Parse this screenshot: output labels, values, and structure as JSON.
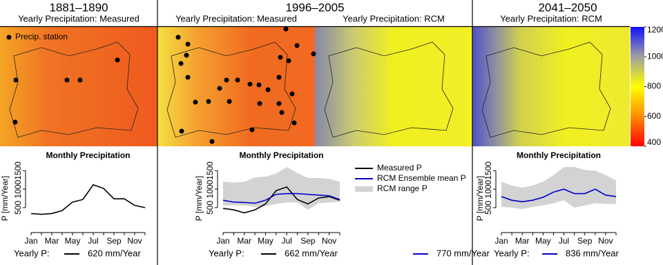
{
  "panels": [
    {
      "period": "1881–1890",
      "maps": [
        {
          "subtitle": "Yearly Precipitation: Measured"
        }
      ]
    },
    {
      "period": "1996–2005",
      "maps": [
        {
          "subtitle": "Yearly Precipitation: Measured"
        },
        {
          "subtitle": "Yearly Precipitation: RCM"
        }
      ]
    },
    {
      "period": "2041–2050",
      "maps": [
        {
          "subtitle": "Yearly Precipitation: RCM"
        }
      ]
    }
  ],
  "map_legend": "Precip. station",
  "colorbar": {
    "lim": [
      400,
      1200
    ],
    "ticks": [
      400,
      600,
      800,
      1000,
      1200
    ],
    "colors": [
      "#ff0000",
      "#ff8c00",
      "#ffff00",
      "#a0a0a0",
      "#1010ff"
    ]
  },
  "chart_data": [
    {
      "type": "line",
      "title": "Monthly Precipitation",
      "ylabel": "P [mm/Year]",
      "footer_label": "Yearly P:",
      "categories": [
        "Jan",
        null,
        "Mar",
        null,
        "May",
        null,
        "Jul",
        null,
        "Sep",
        null,
        "Nov",
        null
      ],
      "ylim": [
        -100,
        1600
      ],
      "yticks": [
        500,
        1000,
        1500
      ],
      "series": [
        {
          "color": "#000000",
          "yearly_label": "620 mm/Year",
          "values": [
            340,
            320,
            340,
            420,
            650,
            720,
            1120,
            1020,
            740,
            740,
            560,
            500
          ]
        }
      ]
    },
    {
      "type": "line",
      "title": "Monthly Precipitation",
      "ylabel": "P [mm/Year]",
      "footer_label": "Yearly P:",
      "categories": [
        "Jan",
        null,
        "Mar",
        null,
        "May",
        null,
        "Jul",
        null,
        "Sep",
        null,
        "Nov",
        null
      ],
      "ylim": [
        -100,
        1600
      ],
      "yticks": [
        500,
        1000,
        1500
      ],
      "range": {
        "name": "RCM range P",
        "color": "#d3d3d3",
        "lower": [
          560,
          560,
          560,
          520,
          540,
          600,
          640,
          640,
          440,
          620,
          640,
          660
        ],
        "upper": [
          1200,
          1180,
          1200,
          1320,
          1340,
          1420,
          1600,
          1440,
          1300,
          1300,
          1280,
          1200
        ]
      },
      "series": [
        {
          "name": "Measured P",
          "color": "#000000",
          "yearly_label": "662 mm/Year",
          "values": [
            480,
            440,
            360,
            440,
            600,
            960,
            1060,
            720,
            600,
            760,
            800,
            700
          ]
        },
        {
          "name": "RCM Ensemble mean P",
          "color": "#0000cc",
          "yearly_label": "770 mm/Year",
          "values": [
            700,
            650,
            640,
            620,
            700,
            860,
            880,
            880,
            860,
            840,
            820,
            720
          ]
        }
      ]
    },
    {
      "type": "line",
      "title": "Monthly Precipitation",
      "ylabel": "P [mm/Year]",
      "footer_label": "Yearly P:",
      "categories": [
        "Jan",
        null,
        "Mar",
        null,
        "May",
        null,
        "Jul",
        null,
        "Sep",
        null,
        "Nov",
        null
      ],
      "ylim": [
        -100,
        1600
      ],
      "yticks": [
        500,
        1000,
        1500
      ],
      "range": {
        "color": "#d3d3d3",
        "lower": [
          520,
          500,
          460,
          520,
          560,
          620,
          700,
          500,
          560,
          620,
          600,
          600
        ],
        "upper": [
          1200,
          1100,
          1040,
          1100,
          1200,
          1380,
          1600,
          1600,
          1520,
          1500,
          1380,
          1240
        ]
      },
      "series": [
        {
          "color": "#0000cc",
          "yearly_label": "836 mm/Year",
          "values": [
            800,
            700,
            660,
            700,
            780,
            920,
            1000,
            880,
            880,
            1000,
            840,
            800
          ]
        }
      ]
    }
  ]
}
